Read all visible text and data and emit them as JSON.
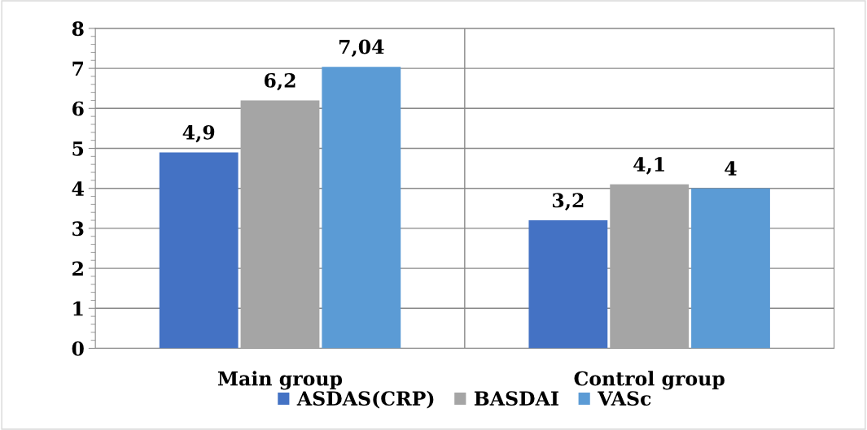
{
  "chart_data": {
    "type": "bar",
    "categories": [
      "Main group",
      "Control group"
    ],
    "series": [
      {
        "name": "ASDAS(CRP)",
        "color": "#4472c4",
        "values": [
          4.9,
          3.2
        ],
        "value_labels": [
          "4,9",
          "3,2"
        ]
      },
      {
        "name": "BASDAI",
        "color": "#a5a5a5",
        "values": [
          6.2,
          4.1
        ],
        "value_labels": [
          "6,2",
          "4,1"
        ]
      },
      {
        "name": "VASc",
        "color": "#5b9bd5",
        "values": [
          7.04,
          4
        ],
        "value_labels": [
          "7,04",
          "4"
        ]
      }
    ],
    "ylim": [
      0,
      8
    ],
    "yticks": [
      0,
      1,
      2,
      3,
      4,
      5,
      6,
      7,
      8
    ],
    "grid": true,
    "legend": "bottom"
  }
}
